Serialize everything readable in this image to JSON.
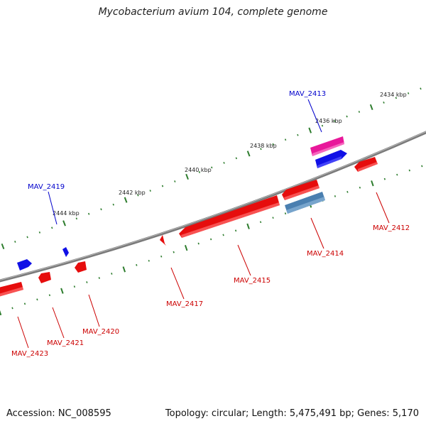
{
  "title": "Mycobacterium avium 104, complete genome",
  "accession_label": "Accession: NC_008595",
  "summary": "Topology: circular; Length: 5,475,491 bp; Genes: 5,170",
  "colors": {
    "forward": "#1010e6",
    "reverse": "#e60d0d",
    "pink": "#e8189a",
    "steel": "#4a7fb0",
    "backbone": "#808080",
    "tick": "#2e7d2e",
    "label_forward": "#0000cc",
    "label_reverse": "#cc0000"
  },
  "kbp_labels": [
    "2434 kbp",
    "2436 kbp",
    "2438 kbp",
    "2440 kbp",
    "2442 kbp",
    "2444 kbp"
  ],
  "genes": [
    {
      "name": "MAV_2413",
      "strand": "forward"
    },
    {
      "name": "MAV_2419",
      "strand": "forward"
    },
    {
      "name": "MAV_2412",
      "strand": "reverse"
    },
    {
      "name": "MAV_2414",
      "strand": "reverse"
    },
    {
      "name": "MAV_2415",
      "strand": "reverse"
    },
    {
      "name": "MAV_2417",
      "strand": "reverse"
    },
    {
      "name": "MAV_2420",
      "strand": "reverse"
    },
    {
      "name": "MAV_2421",
      "strand": "reverse"
    },
    {
      "name": "MAV_2423",
      "strand": "reverse"
    }
  ]
}
